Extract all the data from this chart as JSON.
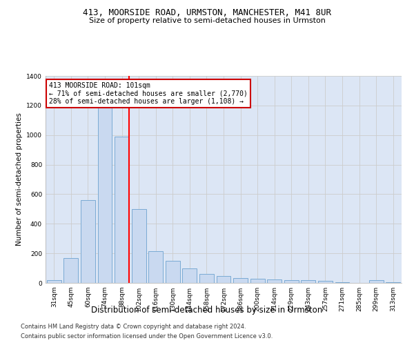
{
  "title": "413, MOORSIDE ROAD, URMSTON, MANCHESTER, M41 8UR",
  "subtitle": "Size of property relative to semi-detached houses in Urmston",
  "xlabel": "Distribution of semi-detached houses by size in Urmston",
  "ylabel": "Number of semi-detached properties",
  "footer1": "Contains HM Land Registry data © Crown copyright and database right 2024.",
  "footer2": "Contains public sector information licensed under the Open Government Licence v3.0.",
  "categories": [
    "31sqm",
    "45sqm",
    "60sqm",
    "74sqm",
    "88sqm",
    "102sqm",
    "116sqm",
    "130sqm",
    "144sqm",
    "158sqm",
    "172sqm",
    "186sqm",
    "200sqm",
    "214sqm",
    "229sqm",
    "243sqm",
    "257sqm",
    "271sqm",
    "285sqm",
    "299sqm",
    "313sqm"
  ],
  "values": [
    20,
    170,
    560,
    1240,
    990,
    500,
    215,
    150,
    100,
    60,
    45,
    35,
    30,
    25,
    20,
    18,
    15,
    3,
    0,
    20,
    5
  ],
  "bar_color": "#c9d9f0",
  "bar_edge_color": "#7aaad4",
  "red_line_x": 4.42,
  "annotation_title": "413 MOORSIDE ROAD: 101sqm",
  "annotation_line1": "← 71% of semi-detached houses are smaller (2,770)",
  "annotation_line2": "28% of semi-detached houses are larger (1,108) →",
  "annotation_box_facecolor": "#ffffff",
  "annotation_box_edgecolor": "#cc0000",
  "ylim": [
    0,
    1400
  ],
  "yticks": [
    0,
    200,
    400,
    600,
    800,
    1000,
    1200,
    1400
  ],
  "grid_color": "#cccccc",
  "bg_color": "#dce6f5",
  "title_fontsize": 9,
  "subtitle_fontsize": 8,
  "ylabel_fontsize": 7.5,
  "xlabel_fontsize": 8.5,
  "tick_fontsize": 6.5,
  "footer_fontsize": 6
}
